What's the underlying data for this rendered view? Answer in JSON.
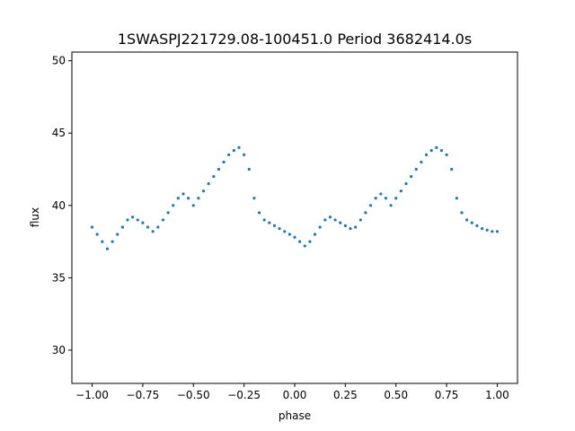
{
  "chart_data": {
    "type": "scatter",
    "title": "1SWASPJ221729.08-100451.0 Period 3682414.0s",
    "xlabel": "phase",
    "ylabel": "flux",
    "xlim": [
      -1.1,
      1.1
    ],
    "ylim": [
      27.7,
      50.6
    ],
    "xticks": [
      -1.0,
      -0.75,
      -0.5,
      -0.25,
      0.0,
      0.25,
      0.5,
      0.75,
      1.0
    ],
    "xtick_labels": [
      "−1.00",
      "−0.75",
      "−0.50",
      "−0.25",
      "0.00",
      "0.25",
      "0.50",
      "0.75",
      "1.00"
    ],
    "yticks": [
      30,
      35,
      40,
      45,
      50
    ],
    "ytick_labels": [
      "30",
      "35",
      "40",
      "45",
      "50"
    ],
    "grid": false,
    "legend": "none",
    "marker_color": "#1f77b4",
    "series": [
      {
        "x": [
          -1.0,
          -0.975,
          -0.95,
          -0.925,
          -0.9,
          -0.875,
          -0.85,
          -0.825,
          -0.8,
          -0.775,
          -0.75,
          -0.725,
          -0.7,
          -0.675,
          -0.65,
          -0.625,
          -0.6,
          -0.575,
          -0.55,
          -0.525,
          -0.5,
          -0.475,
          -0.45,
          -0.425,
          -0.4,
          -0.375,
          -0.35,
          -0.325,
          -0.3,
          -0.275,
          -0.25,
          -0.225,
          -0.2,
          -0.175,
          -0.15,
          -0.125,
          -0.1,
          -0.075,
          -0.05,
          -0.025,
          0.0,
          0.025,
          0.05,
          0.075,
          0.1,
          0.125,
          0.15,
          0.175,
          0.2,
          0.225,
          0.25,
          0.275,
          0.3,
          0.325,
          0.35,
          0.375,
          0.4,
          0.425,
          0.45,
          0.475,
          0.5,
          0.525,
          0.55,
          0.575,
          0.6,
          0.625,
          0.65,
          0.675,
          0.7,
          0.725,
          0.75,
          0.775,
          0.8,
          0.825,
          0.85,
          0.875,
          0.9,
          0.925,
          0.95,
          0.975,
          1.0
        ],
        "y": [
          38.5,
          38.0,
          37.5,
          37.0,
          37.5,
          38.0,
          38.5,
          39.0,
          39.2,
          39.0,
          38.8,
          38.5,
          38.2,
          38.5,
          39.0,
          39.5,
          40.0,
          40.5,
          40.8,
          40.5,
          40.0,
          40.5,
          41.0,
          41.5,
          42.0,
          42.5,
          43.0,
          43.5,
          43.8,
          44.0,
          43.5,
          42.5,
          40.5,
          39.5,
          39.0,
          38.8,
          38.6,
          38.4,
          38.2,
          38.0,
          37.8,
          37.5,
          37.2,
          37.5,
          38.0,
          38.5,
          39.0,
          39.2,
          39.0,
          38.8,
          38.6,
          38.4,
          38.5,
          39.0,
          39.5,
          40.0,
          40.5,
          40.8,
          40.5,
          40.0,
          40.5,
          41.0,
          41.5,
          42.0,
          42.5,
          43.0,
          43.5,
          43.8,
          44.0,
          43.8,
          43.5,
          42.5,
          40.5,
          39.5,
          39.0,
          38.8,
          38.6,
          38.4,
          38.3,
          38.2,
          38.2
        ]
      }
    ]
  }
}
